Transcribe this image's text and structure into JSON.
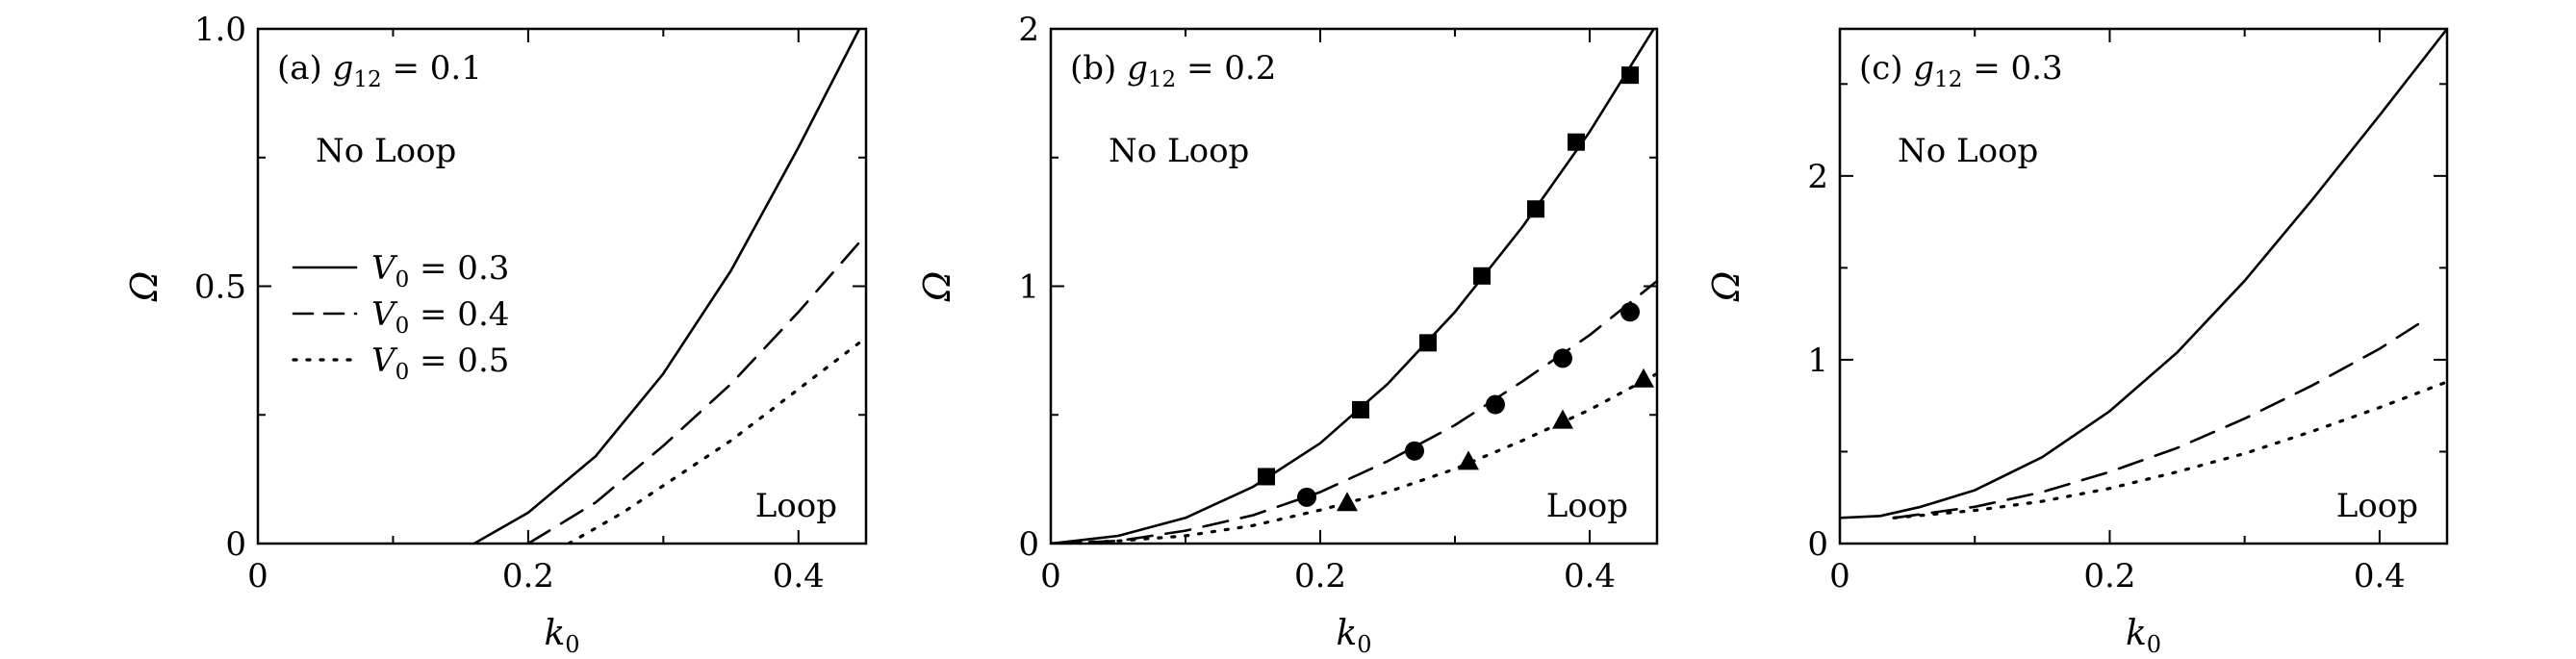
{
  "chart_data": [
    {
      "type": "line",
      "panel_label": "(a)",
      "param_symbol": "g",
      "param_subscript": "12",
      "param_value": "= 0.1",
      "xlabel": "k",
      "xlabel_sub": "0",
      "ylabel": "Ω",
      "xlim": [
        0,
        0.45
      ],
      "ylim": [
        0,
        1.0
      ],
      "xticks": [
        0,
        0.2,
        0.4
      ],
      "xtick_labels": [
        "0",
        "0.2",
        "0.4"
      ],
      "yticks": [
        0,
        0.5,
        1.0
      ],
      "ytick_labels": [
        "0",
        "0.5",
        "1.0"
      ],
      "region_upper": "No Loop",
      "region_lower": "Loop",
      "legend": "left-middle",
      "series": [
        {
          "name_symbol": "V",
          "name_sub": "0",
          "name_value": "= 0.3",
          "style": "solid",
          "x": [
            0.16,
            0.2,
            0.25,
            0.3,
            0.35,
            0.4,
            0.445
          ],
          "y": [
            0.0,
            0.06,
            0.17,
            0.33,
            0.53,
            0.77,
            1.0
          ]
        },
        {
          "name_symbol": "V",
          "name_sub": "0",
          "name_value": "= 0.4",
          "style": "dashed",
          "x": [
            0.2,
            0.25,
            0.3,
            0.35,
            0.4,
            0.45
          ],
          "y": [
            0.0,
            0.08,
            0.19,
            0.31,
            0.45,
            0.6
          ]
        },
        {
          "name_symbol": "V",
          "name_sub": "0",
          "name_value": "= 0.5",
          "style": "dotted",
          "x": [
            0.23,
            0.27,
            0.31,
            0.35,
            0.4,
            0.45
          ],
          "y": [
            0.0,
            0.06,
            0.13,
            0.2,
            0.3,
            0.4
          ]
        }
      ]
    },
    {
      "type": "line",
      "panel_label": "(b)",
      "param_symbol": "g",
      "param_subscript": "12",
      "param_value": "= 0.2",
      "xlabel": "k",
      "xlabel_sub": "0",
      "ylabel": "Ω",
      "xlim": [
        0,
        0.45
      ],
      "ylim": [
        0,
        2
      ],
      "xticks": [
        0,
        0.2,
        0.4
      ],
      "xtick_labels": [
        "0",
        "0.2",
        "0.4"
      ],
      "yticks": [
        0,
        1,
        2
      ],
      "ytick_labels": [
        "0",
        "1",
        "2"
      ],
      "region_upper": "No Loop",
      "region_lower": "Loop",
      "series": [
        {
          "style": "solid",
          "x": [
            0,
            0.05,
            0.1,
            0.15,
            0.2,
            0.25,
            0.3,
            0.35,
            0.4,
            0.45
          ],
          "y": [
            0.0,
            0.03,
            0.1,
            0.22,
            0.39,
            0.62,
            0.9,
            1.23,
            1.6,
            2.02
          ]
        },
        {
          "style": "dashed",
          "x": [
            0,
            0.05,
            0.1,
            0.15,
            0.2,
            0.25,
            0.3,
            0.35,
            0.4,
            0.45
          ],
          "y": [
            0.0,
            0.01,
            0.05,
            0.11,
            0.2,
            0.32,
            0.46,
            0.63,
            0.81,
            1.02
          ]
        },
        {
          "style": "dotted",
          "x": [
            0,
            0.05,
            0.1,
            0.15,
            0.2,
            0.25,
            0.3,
            0.35,
            0.4,
            0.45
          ],
          "y": [
            0.0,
            0.01,
            0.03,
            0.07,
            0.13,
            0.2,
            0.29,
            0.4,
            0.52,
            0.66
          ]
        }
      ],
      "markers": [
        {
          "shape": "square",
          "x": [
            0.16,
            0.23,
            0.28,
            0.32,
            0.36,
            0.39,
            0.43
          ],
          "y": [
            0.26,
            0.52,
            0.78,
            1.04,
            1.3,
            1.56,
            1.82
          ]
        },
        {
          "shape": "circle",
          "x": [
            0.19,
            0.27,
            0.33,
            0.38,
            0.43
          ],
          "y": [
            0.18,
            0.36,
            0.54,
            0.72,
            0.9
          ]
        },
        {
          "shape": "triangle",
          "x": [
            0.22,
            0.31,
            0.38,
            0.44
          ],
          "y": [
            0.16,
            0.32,
            0.48,
            0.64
          ]
        }
      ]
    },
    {
      "type": "line",
      "panel_label": "(c)",
      "param_symbol": "g",
      "param_subscript": "12",
      "param_value": "= 0.3",
      "xlabel": "k",
      "xlabel_sub": "0",
      "ylabel": "Ω",
      "xlim": [
        0,
        0.45
      ],
      "ylim": [
        0,
        2.8
      ],
      "xticks": [
        0,
        0.2,
        0.4
      ],
      "xtick_labels": [
        "0",
        "0.2",
        "0.4"
      ],
      "yticks": [
        0,
        1,
        2
      ],
      "ytick_labels": [
        "0",
        "1",
        "2"
      ],
      "region_upper": "No Loop",
      "region_lower": "Loop",
      "series": [
        {
          "style": "solid",
          "x": [
            0,
            0.03,
            0.06,
            0.1,
            0.15,
            0.2,
            0.25,
            0.3,
            0.35,
            0.4,
            0.45
          ],
          "y": [
            0.14,
            0.15,
            0.2,
            0.29,
            0.47,
            0.72,
            1.04,
            1.43,
            1.87,
            2.33,
            2.8
          ]
        },
        {
          "style": "dashed",
          "x": [
            0.04,
            0.1,
            0.15,
            0.2,
            0.25,
            0.3,
            0.35,
            0.4,
            0.43
          ],
          "y": [
            0.14,
            0.2,
            0.28,
            0.39,
            0.52,
            0.68,
            0.86,
            1.06,
            1.2
          ]
        },
        {
          "style": "dotted",
          "x": [
            0.04,
            0.1,
            0.15,
            0.2,
            0.25,
            0.3,
            0.35,
            0.4,
            0.45
          ],
          "y": [
            0.14,
            0.18,
            0.23,
            0.3,
            0.39,
            0.49,
            0.61,
            0.74,
            0.88
          ]
        }
      ]
    }
  ]
}
